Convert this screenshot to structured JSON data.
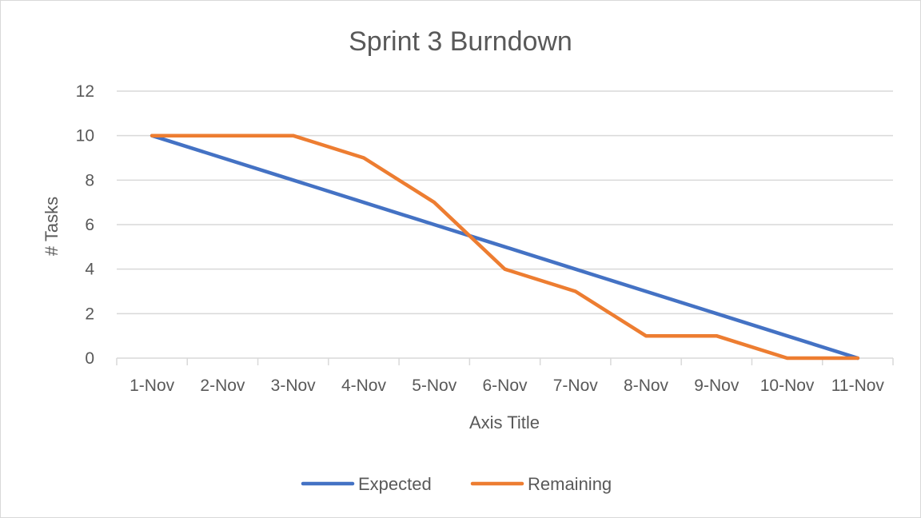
{
  "chart_data": {
    "type": "line",
    "title": "Sprint 3 Burndown",
    "xlabel": "Axis Title",
    "ylabel": "# Tasks",
    "categories": [
      "1-Nov",
      "2-Nov",
      "3-Nov",
      "4-Nov",
      "5-Nov",
      "6-Nov",
      "7-Nov",
      "8-Nov",
      "9-Nov",
      "10-Nov",
      "11-Nov"
    ],
    "ylim": [
      0,
      12
    ],
    "yticks": [
      0,
      2,
      4,
      6,
      8,
      10,
      12
    ],
    "grid": true,
    "legend_position": "bottom",
    "series": [
      {
        "name": "Expected",
        "color": "#4472C4",
        "values": [
          10,
          9,
          8,
          7,
          6,
          5,
          4,
          3,
          2,
          1,
          0
        ]
      },
      {
        "name": "Remaining",
        "color": "#ED7D31",
        "values": [
          10,
          10,
          10,
          9,
          7,
          4,
          3,
          1,
          1,
          0,
          0
        ]
      }
    ]
  }
}
